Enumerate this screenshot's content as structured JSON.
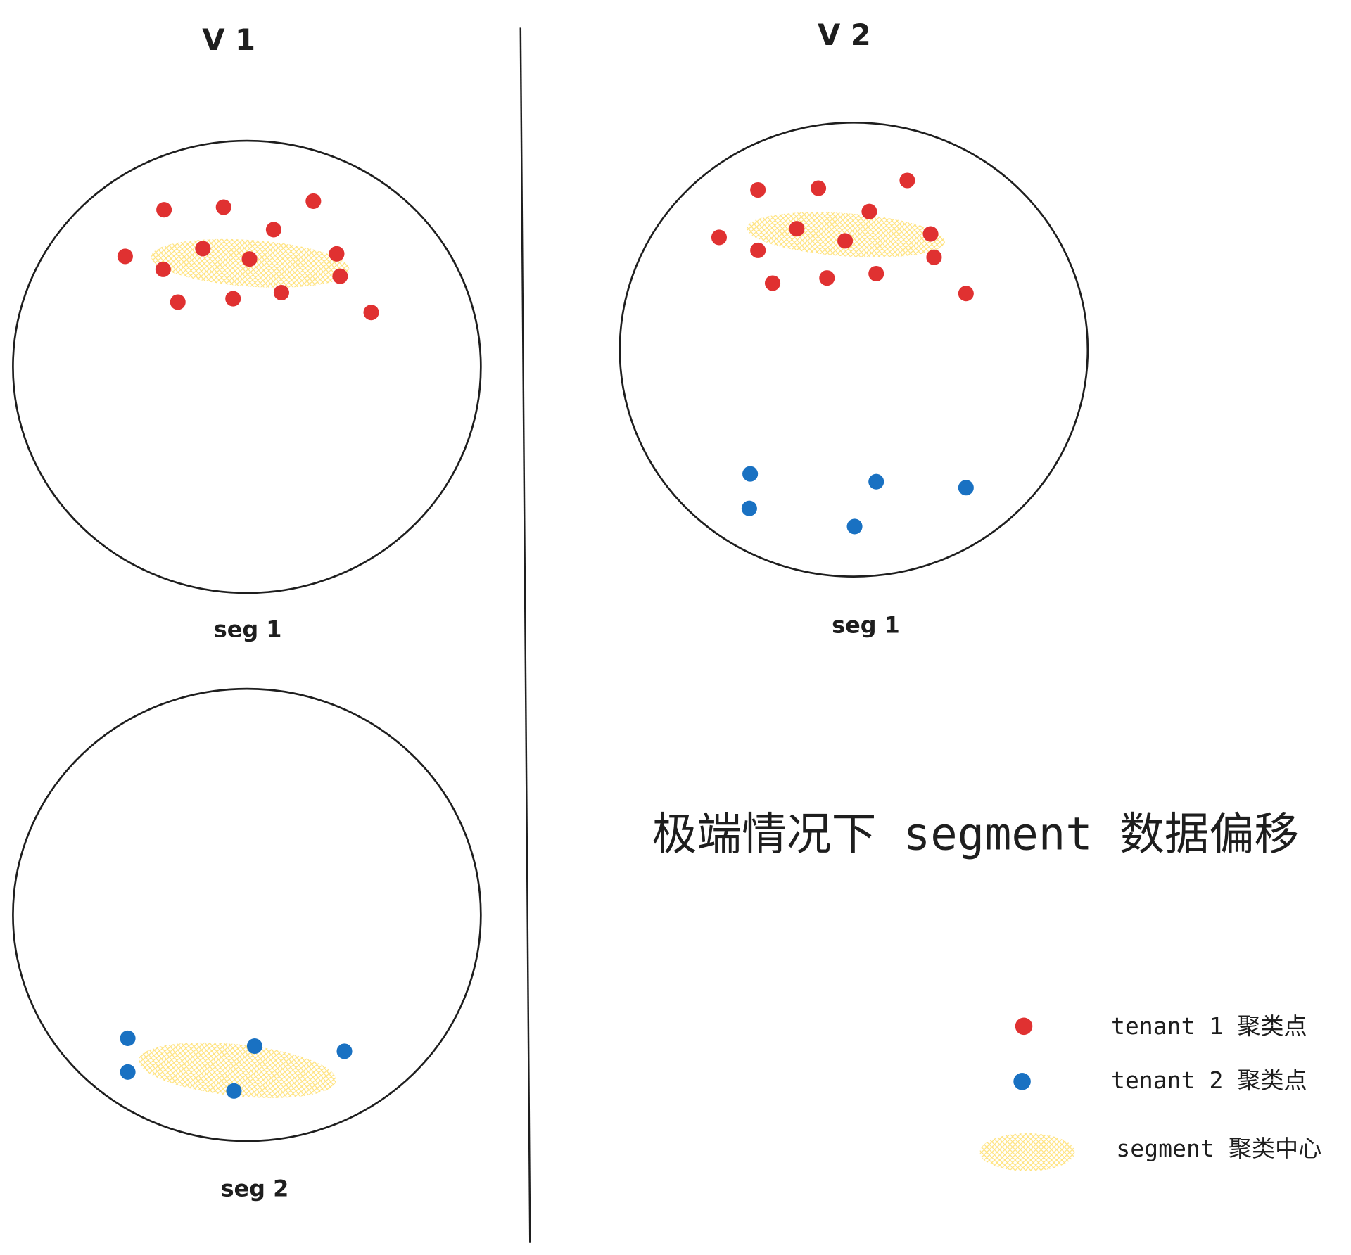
{
  "labels": {
    "v1": "V 1",
    "v2": "V 2"
  },
  "segments": [
    {
      "label": "seg 1"
    },
    {
      "label": "seg 2"
    },
    {
      "label": "seg 1"
    }
  ],
  "title": "极端情况下 segment 数据偏移",
  "legend": [
    {
      "label": "tenant 1 聚类点"
    },
    {
      "label": "tenant 2 聚类点"
    },
    {
      "label": "segment 聚类中心"
    }
  ]
}
